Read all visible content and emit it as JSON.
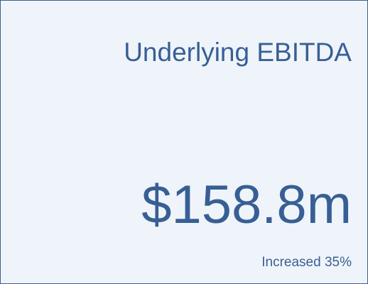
{
  "card": {
    "title": "Underlying EBITDA",
    "value": "$158.8m",
    "note": "Increased 35%"
  }
}
